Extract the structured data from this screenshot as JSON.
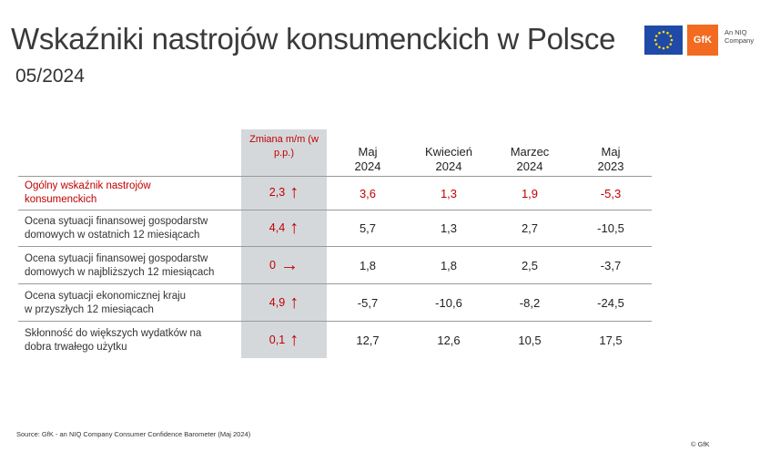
{
  "header": {
    "title": "Wskaźniki nastrojów konsumenckich w Polsce",
    "subtitle": "05/2024",
    "gfk_logo": "GfK",
    "niq_label": "An NIQ Company"
  },
  "table": {
    "change_header": "Zmiana m/m (w p.p.)",
    "columns": [
      {
        "line1": "Maj",
        "line2": "2024"
      },
      {
        "line1": "Kwiecień",
        "line2": "2024"
      },
      {
        "line1": "Marzec",
        "line2": "2024"
      },
      {
        "line1": "Maj",
        "line2": "2023"
      }
    ],
    "rows": [
      {
        "label_line1": "Ogólny wskaźnik nastrojów",
        "label_line2": "konsumenckich",
        "change": "2,3",
        "arrow": "↑",
        "values": [
          "3,6",
          "1,3",
          "1,9",
          "-5,3"
        ]
      },
      {
        "label_line1": "Ocena sytuacji finansowej gospodarstw",
        "label_line2": "domowych w ostatnich 12 miesiącach",
        "change": "4,4",
        "arrow": "↑",
        "values": [
          "5,7",
          "1,3",
          "2,7",
          "-10,5"
        ]
      },
      {
        "label_line1": "Ocena sytuacji finansowej gospodarstw",
        "label_line2": "domowych w najbliższych 12 miesiącach",
        "change": "0",
        "arrow": "→",
        "values": [
          "1,8",
          "1,8",
          "2,5",
          "-3,7"
        ]
      },
      {
        "label_line1": "Ocena sytuacji ekonomicznej kraju",
        "label_line2": "w przyszłych 12 miesiącach",
        "change": "4,9",
        "arrow": "↑",
        "values": [
          "-5,7",
          "-10,6",
          "-8,2",
          "-24,5"
        ]
      },
      {
        "label_line1": "Skłonność do większych wydatków na",
        "label_line2": "dobra trwałego użytku",
        "change": "0,1",
        "arrow": "↑",
        "values": [
          "12,7",
          "12,6",
          "10,5",
          "17,5"
        ]
      }
    ]
  },
  "footer": {
    "source": "Source: GfK - an NIQ Company Consumer Confidence Barometer (Maj 2024)",
    "copyright": "© GfK"
  },
  "colors": {
    "accent": "#c00000",
    "shade": "#d5d8db",
    "gfk_orange": "#f26b21",
    "eu_blue": "#1f4aa8"
  }
}
